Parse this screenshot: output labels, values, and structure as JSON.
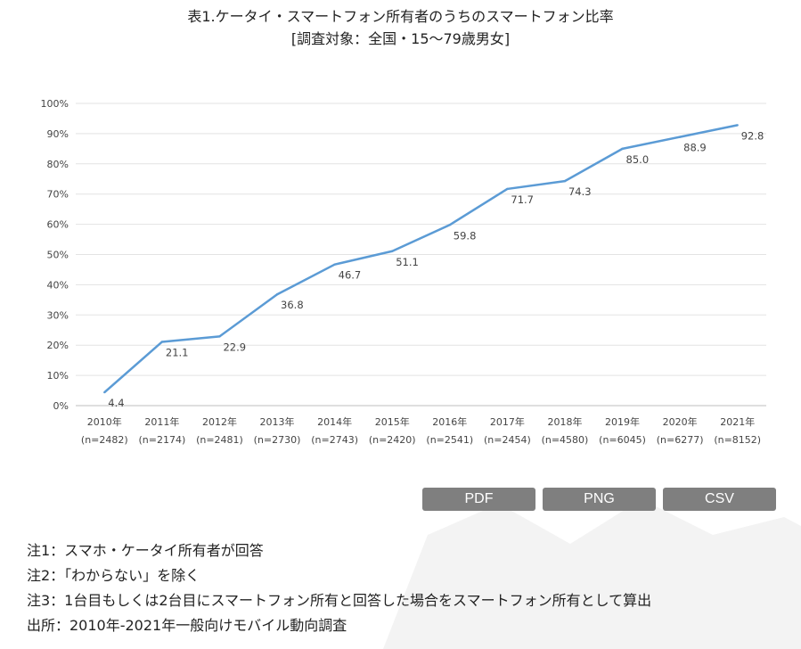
{
  "title": "表1.ケータイ・スマートフォン所有者のうちのスマートフォン比率",
  "subtitle": "[調査対象：全国・15〜79歳男女]",
  "chart_data": {
    "type": "line",
    "title": "表1.ケータイ・スマートフォン所有者のうちのスマートフォン比率",
    "subtitle": "[調査対象：全国・15〜79歳男女]",
    "categories": [
      "2010年",
      "2011年",
      "2012年",
      "2013年",
      "2014年",
      "2015年",
      "2016年",
      "2017年",
      "2018年",
      "2019年",
      "2020年",
      "2021年"
    ],
    "sample_sizes": [
      "(n=2482)",
      "(n=2174)",
      "(n=2481)",
      "(n=2730)",
      "(n=2743)",
      "(n=2420)",
      "(n=2541)",
      "(n=2454)",
      "(n=4580)",
      "(n=6045)",
      "(n=6277)",
      "(n=8152)"
    ],
    "values": [
      4.4,
      21.1,
      22.9,
      36.8,
      46.7,
      51.1,
      59.8,
      71.7,
      74.3,
      85.0,
      88.9,
      92.8
    ],
    "value_labels": [
      "4.4",
      "21.1",
      "22.9",
      "36.8",
      "46.7",
      "51.1",
      "59.8",
      "71.7",
      "74.3",
      "85.0",
      "88.9",
      "92.8"
    ],
    "yticks": [
      "0%",
      "10%",
      "20%",
      "30%",
      "40%",
      "50%",
      "60%",
      "70%",
      "80%",
      "90%",
      "100%"
    ],
    "ylim": [
      0,
      100
    ],
    "grid": true,
    "legend": "none",
    "line_color": "#5b9bd5"
  },
  "buttons": {
    "pdf": "PDF",
    "png": "PNG",
    "csv": "CSV"
  },
  "notes": {
    "note1": "注1：スマホ・ケータイ所有者が回答",
    "note2": "注2：「わからない」を除く",
    "note3": "注3：1台目もしくは2台目にスマートフォン所有と回答した場合をスマートフォン所有として算出",
    "source": "出所：2010年-2021年一般向けモバイル動向調査"
  }
}
